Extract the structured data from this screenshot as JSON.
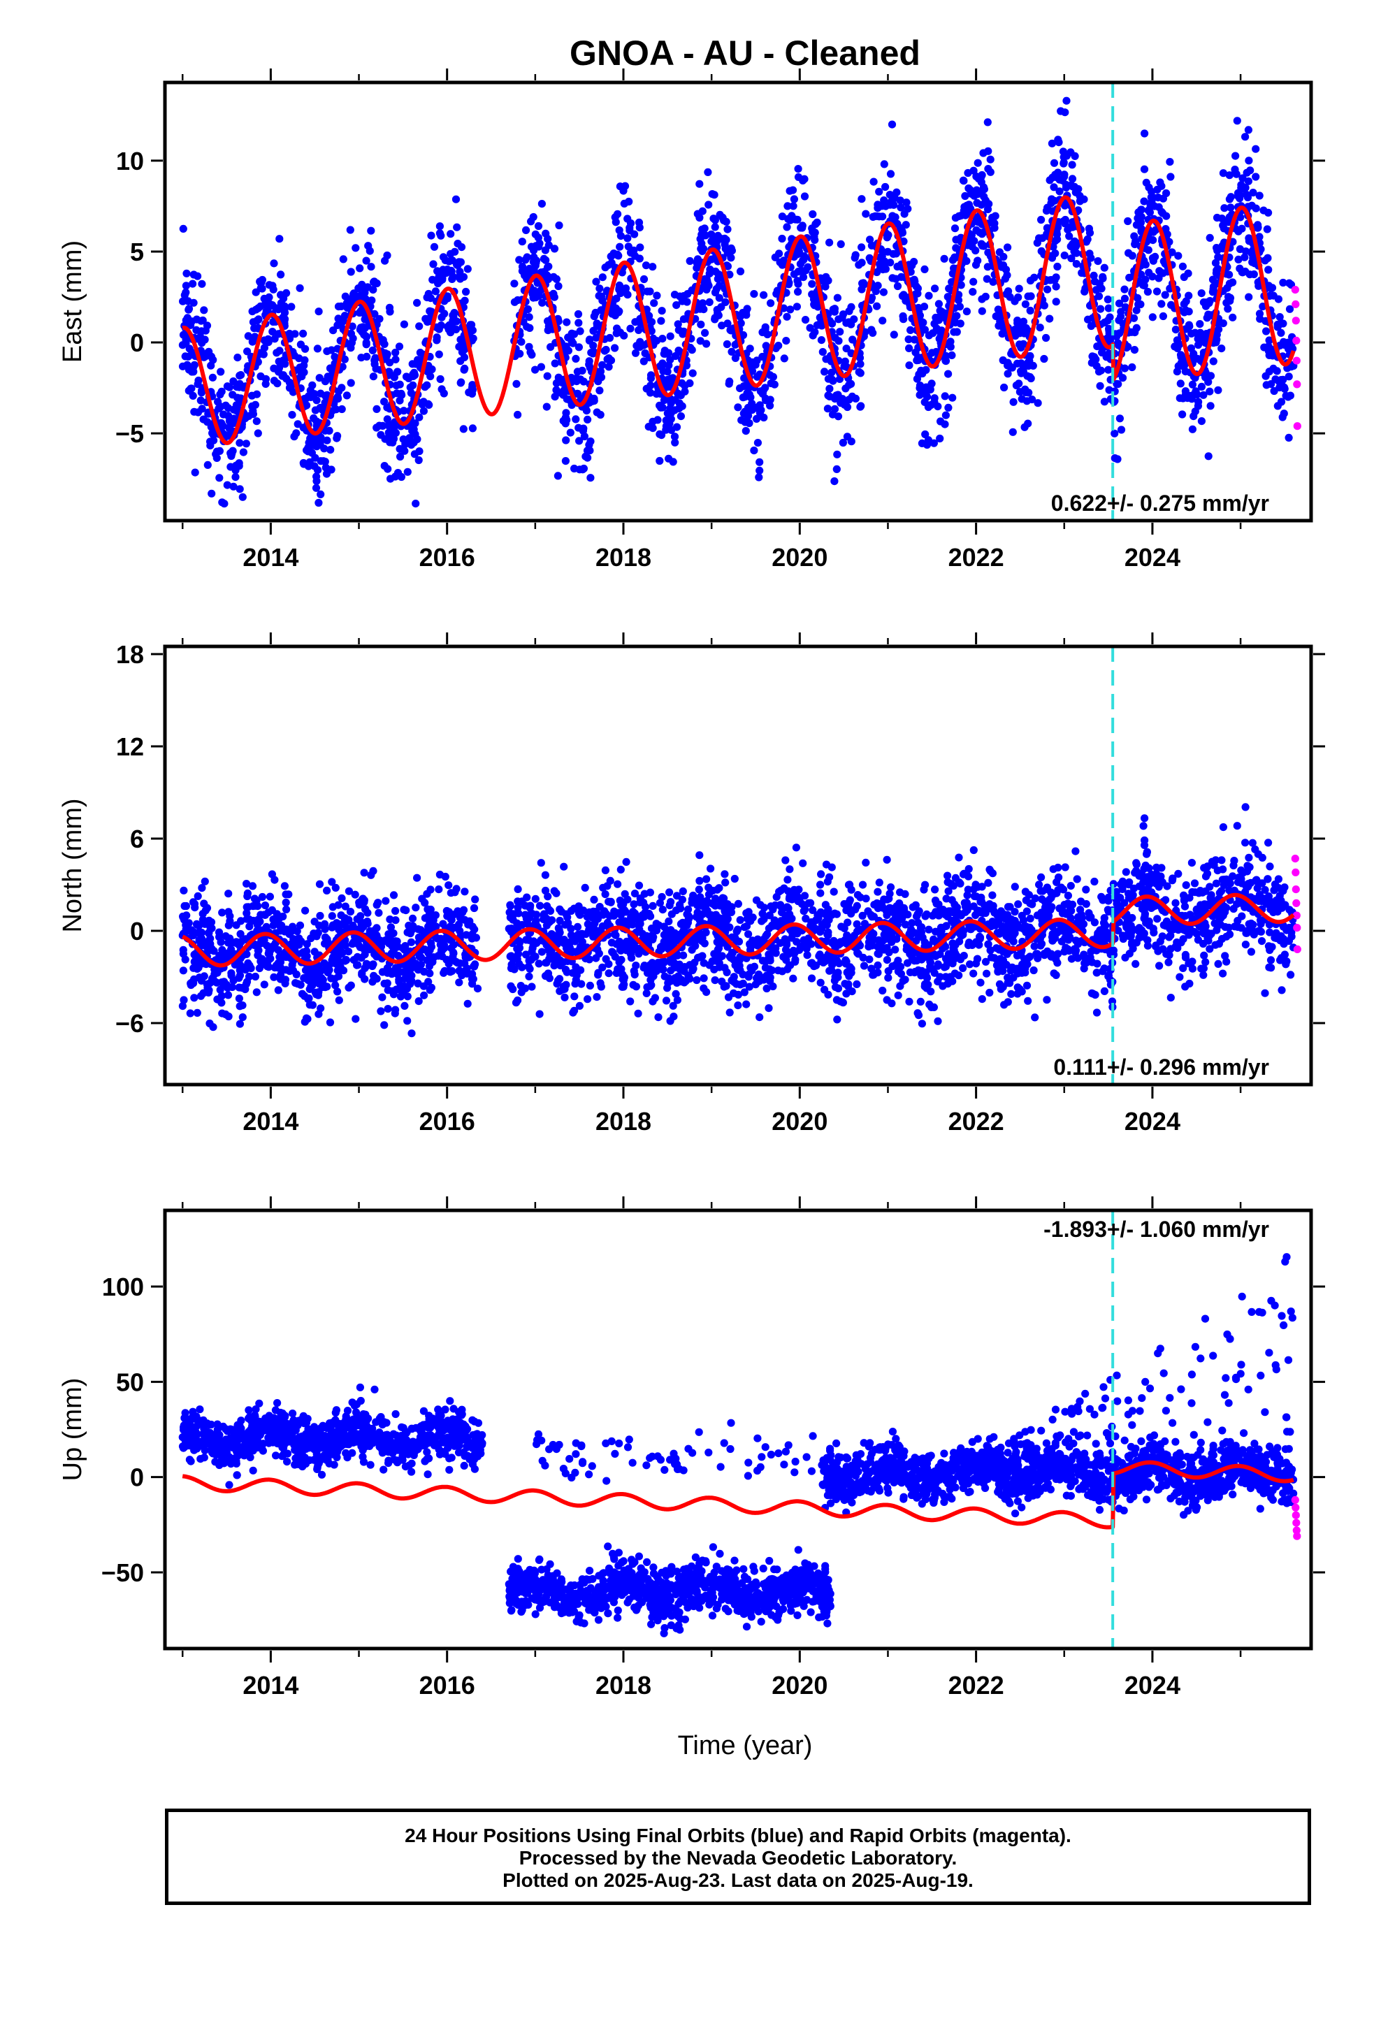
{
  "title": "GNOA  - AU - Cleaned",
  "xlabel": "Time (year)",
  "footer": {
    "line1": "24 Hour Positions Using Final Orbits (blue) and Rapid Orbits (magenta).",
    "line2": "Processed by the Nevada Geodetic Laboratory.",
    "line3": "Plotted on 2025-Aug-23. Last data on 2025-Aug-19."
  },
  "colors": {
    "final_points": "#0000ff",
    "rapid_points": "#ff00ff",
    "model": "#ff0000",
    "event_line": "#33dddd"
  },
  "chart_data": [
    {
      "type": "scatter",
      "component": "East",
      "ylabel": "East (mm)",
      "rate_text": "0.622+/- 0.275 mm/yr",
      "rate_position": "bottom-right",
      "xlim": [
        2012.8,
        2025.8
      ],
      "ylim": [
        -9.8,
        14.3
      ],
      "xticks": [
        2014,
        2016,
        2018,
        2020,
        2022,
        2024
      ],
      "yticks": [
        -5,
        0,
        5,
        10
      ],
      "event_line_x": 2023.55,
      "model": {
        "start": 2013.0,
        "end": 2025.6,
        "rate": 0.622,
        "offset": -2.5,
        "annual_amp_start": 3.3,
        "annual_amp_end": 4.5,
        "phase": -0.06,
        "step_x": 2023.55,
        "step_size": -2.0
      },
      "scatter": {
        "sigma": 2.0,
        "gaps": [
          [
            2016.3,
            2016.75
          ]
        ],
        "rapid_start": 2025.62,
        "rapid_values": [
          2.9,
          2.1,
          1.2,
          0.1,
          -1.0,
          -2.3,
          -4.6
        ]
      }
    },
    {
      "type": "scatter",
      "component": "North",
      "ylabel": "North (mm)",
      "rate_text": "0.111+/- 0.296 mm/yr",
      "rate_position": "bottom-right",
      "xlim": [
        2012.8,
        2025.8
      ],
      "ylim": [
        -10.0,
        18.5
      ],
      "xticks": [
        2014,
        2016,
        2018,
        2020,
        2022,
        2024
      ],
      "yticks": [
        -6,
        0,
        6,
        12,
        18
      ],
      "event_line_x": 2023.55,
      "model": {
        "start": 2013.0,
        "end": 2025.6,
        "rate": 0.111,
        "offset": -1.3,
        "annual_amp_start": 1.0,
        "annual_amp_end": 0.9,
        "phase": 0.4,
        "step_x": 2023.55,
        "step_size": 1.4
      },
      "scatter": {
        "sigma": 1.8,
        "gaps": [
          [
            2016.35,
            2016.7
          ]
        ],
        "rapid_start": 2025.62,
        "rapid_values": [
          4.7,
          3.8,
          2.7,
          1.8,
          1.0,
          0.2,
          -1.2
        ]
      }
    },
    {
      "type": "scatter",
      "component": "Up",
      "ylabel": "Up (mm)",
      "rate_text": "-1.893+/- 1.060 mm/yr",
      "rate_position": "top-right",
      "xlim": [
        2012.8,
        2025.8
      ],
      "ylim": [
        -90,
        140
      ],
      "xticks": [
        2014,
        2016,
        2018,
        2020,
        2022,
        2024
      ],
      "yticks": [
        -50,
        0,
        50,
        100
      ],
      "event_line_x": 2023.55,
      "model": {
        "start": 2013.0,
        "end": 2025.6,
        "rate": -1.893,
        "offset": -3.0,
        "annual_amp_start": 3.5,
        "annual_amp_end": 3.5,
        "phase": 0.1,
        "step_x": 2023.55,
        "step_size": 28.0
      },
      "scatter": {
        "sigma": 6.5,
        "segments": [
          {
            "from": 2013.0,
            "to": 2016.4,
            "level": 20,
            "count": 900
          },
          {
            "from": 2016.7,
            "to": 2020.35,
            "level": -60,
            "count": 1000
          },
          {
            "from": 2017.0,
            "to": 2020.2,
            "level": 12,
            "count": 70
          },
          {
            "from": 2020.25,
            "to": 2025.6,
            "level": 2,
            "count": 1500
          }
        ],
        "outliers_after": 2022.0,
        "rapid_start": 2025.62,
        "rapid_values": [
          -12,
          -16,
          -20,
          -24,
          -28,
          -31
        ]
      }
    }
  ]
}
